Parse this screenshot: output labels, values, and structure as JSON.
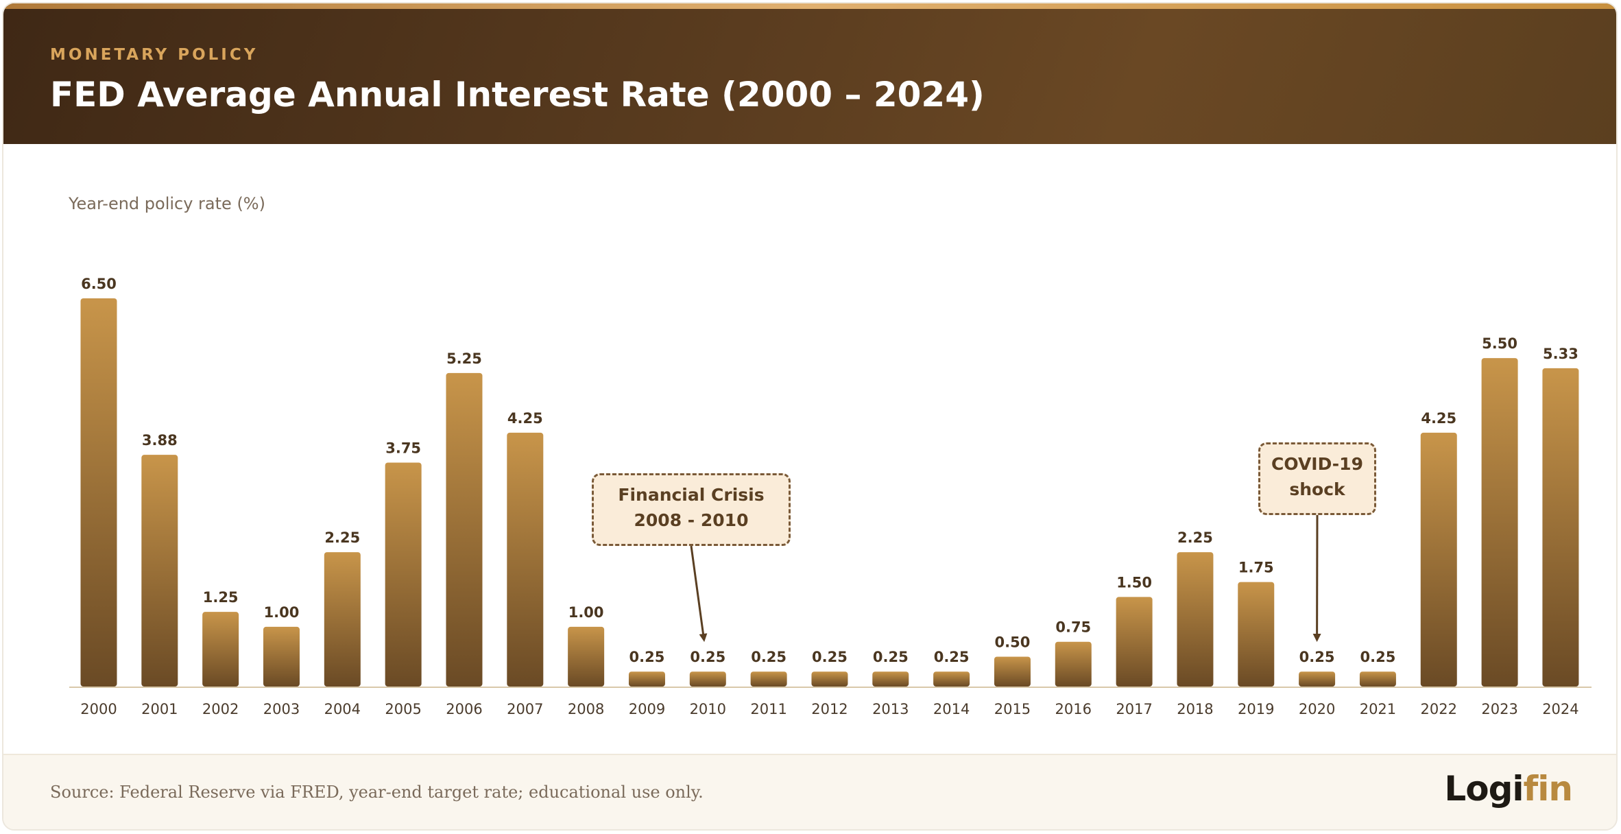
{
  "header": {
    "kicker": "MONETARY POLICY",
    "title": "FED Average Annual Interest Rate (2000 – 2024)"
  },
  "chart_data": {
    "type": "bar",
    "title": "FED Average Annual Interest Rate (2000 – 2024)",
    "ylabel": "Year-end policy rate (%)",
    "xlabel": "",
    "ylim": [
      0,
      6.5
    ],
    "grid": false,
    "categories": [
      "2000",
      "2001",
      "2002",
      "2003",
      "2004",
      "2005",
      "2006",
      "2007",
      "2008",
      "2009",
      "2010",
      "2011",
      "2012",
      "2013",
      "2014",
      "2015",
      "2016",
      "2017",
      "2018",
      "2019",
      "2020",
      "2021",
      "2022",
      "2023",
      "2024"
    ],
    "values": [
      6.5,
      3.88,
      1.25,
      1.0,
      2.25,
      3.75,
      5.25,
      4.25,
      1.0,
      0.25,
      0.25,
      0.25,
      0.25,
      0.25,
      0.25,
      0.5,
      0.75,
      1.5,
      2.25,
      1.75,
      0.25,
      0.25,
      4.25,
      5.5,
      5.33
    ],
    "value_labels": [
      "6.50",
      "3.88",
      "1.25",
      "1.00",
      "2.25",
      "3.75",
      "5.25",
      "4.25",
      "1.00",
      "0.25",
      "0.25",
      "0.25",
      "0.25",
      "0.25",
      "0.25",
      "0.50",
      "0.75",
      "1.50",
      "2.25",
      "1.75",
      "0.25",
      "0.25",
      "4.25",
      "5.50",
      "5.33"
    ],
    "annotations": [
      {
        "line1": "Financial Crisis",
        "line2": "2008 - 2010",
        "target": "2010"
      },
      {
        "line1": "COVID-19",
        "line2": "shock",
        "target": "2020"
      }
    ],
    "colors": {
      "bar_top": "#c8954a",
      "bar_bottom": "#6a4a25",
      "axis": "#d9c8aa",
      "label": "#4a3620",
      "tick": "#4a3b2c"
    }
  },
  "footer": {
    "source": "Source: Federal Reserve via FRED, year-end target rate; educational use only.",
    "logo_part1": "Logi",
    "logo_part2": "fin"
  }
}
